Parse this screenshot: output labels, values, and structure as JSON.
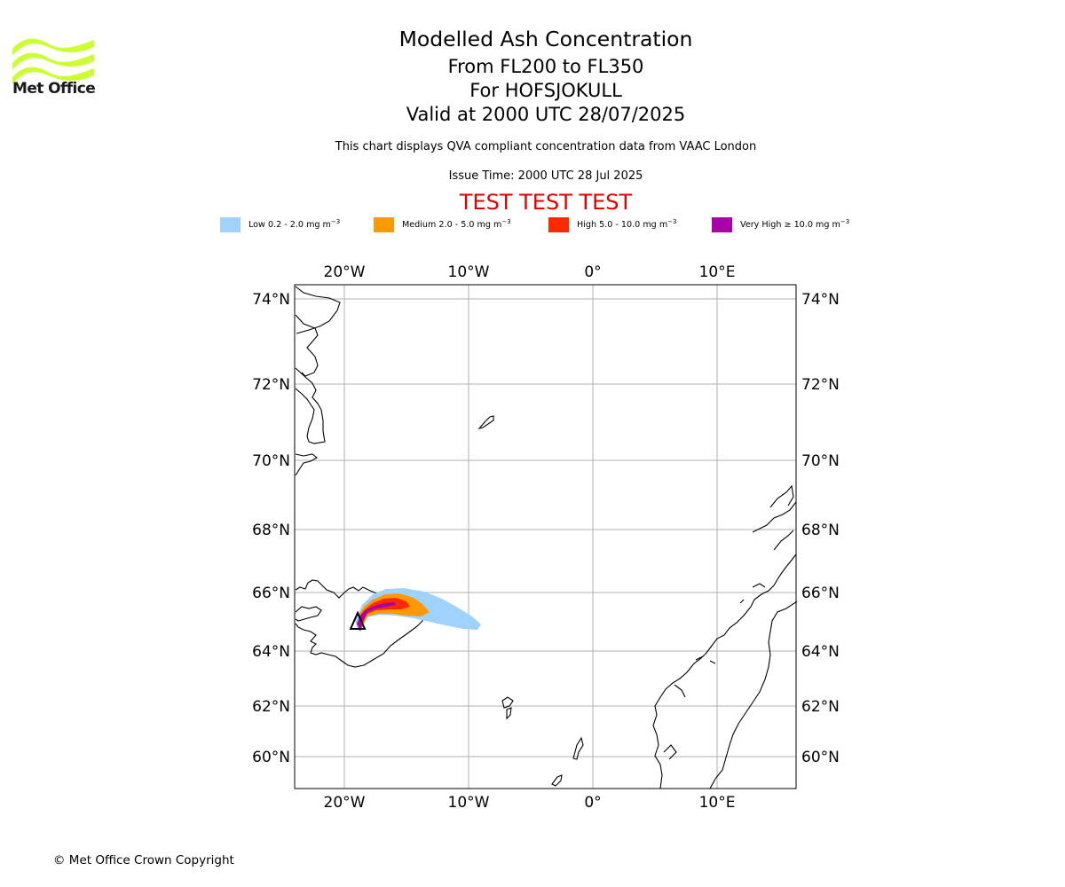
{
  "header": {
    "logo_text": "Met Office",
    "logo_color": "#ccff33",
    "title": "Modelled Ash Concentration",
    "levels": "From FL200 to FL350",
    "volcano": "For HOFSJOKULL",
    "valid": "Valid at 2000 UTC 28/07/2025",
    "description": "This chart displays QVA compliant concentration data from VAAC London",
    "issue_time": "Issue Time: 2000 UTC 28 Jul 2025",
    "test_banner": "TEST TEST TEST"
  },
  "legend": [
    {
      "label": "Low 0.2 - 2.0 mg m",
      "unit_exp": "−3",
      "color": "#a0d2ff"
    },
    {
      "label": "Medium 2.0 - 5.0 mg m",
      "unit_exp": "−3",
      "color": "#ff9900"
    },
    {
      "label": "High 5.0 - 10.0 mg m",
      "unit_exp": "−3",
      "color": "#ff2800"
    },
    {
      "label": "Very High  ≥  10.0 mg m",
      "unit_exp": "−3",
      "color": "#aa00aa"
    }
  ],
  "map": {
    "lon_ticks": [
      "20°W",
      "10°W",
      "0°",
      "10°E"
    ],
    "lat_ticks": [
      "74°N",
      "72°N",
      "70°N",
      "68°N",
      "66°N",
      "64°N",
      "62°N",
      "60°N"
    ],
    "volcano_marker": "triangle-icon"
  },
  "footer": {
    "copyright": "© Met Office Crown Copyright"
  }
}
